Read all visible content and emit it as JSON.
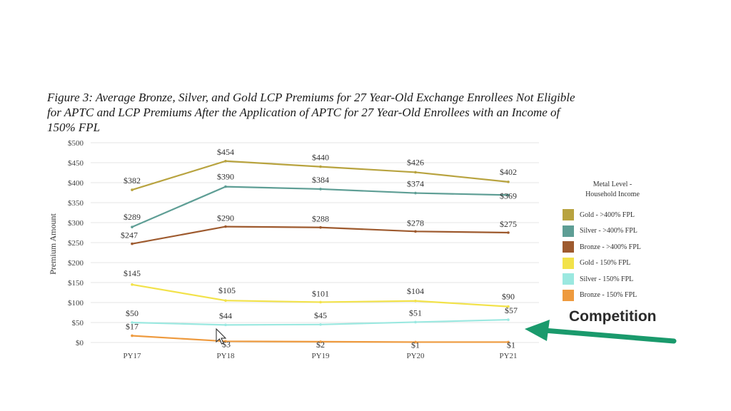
{
  "chart_data": {
    "type": "line",
    "title": "Figure 3: Average Bronze, Silver, and Gold LCP Premiums for 27 Year-Old Exchange Enrollees Not Eligible\nfor APTC and LCP Premiums After the Application of APTC for 27 Year-Old Enrollees with an Income of\n150% FPL",
    "xlabel": "",
    "ylabel": "Premium Amount",
    "categories": [
      "PY17",
      "PY18",
      "PY19",
      "PY20",
      "PY21"
    ],
    "ylim": [
      0,
      500
    ],
    "yticks": [
      "$0",
      "$50",
      "$100",
      "$150",
      "$200",
      "$250",
      "$300",
      "$350",
      "$400",
      "$450",
      "$500"
    ],
    "grid": true,
    "legend_title": "Metal Level -\nHousehold Income",
    "legend_position": "right",
    "series": [
      {
        "name": "Gold - >400% FPL",
        "color": "#b8a33f",
        "values": [
          382,
          454,
          440,
          426,
          402
        ],
        "labels": [
          "$382",
          "$454",
          "$440",
          "$426",
          "$402"
        ]
      },
      {
        "name": "Silver - >400% FPL",
        "color": "#5e9e95",
        "values": [
          289,
          390,
          384,
          374,
          369
        ],
        "labels": [
          "$289",
          "$390",
          "$384",
          "$374",
          "$369"
        ]
      },
      {
        "name": "Bronze - >400% FPL",
        "color": "#9e5a2e",
        "values": [
          247,
          290,
          288,
          278,
          275
        ],
        "labels": [
          "$247",
          "$290",
          "$288",
          "$278",
          "$275"
        ]
      },
      {
        "name": "Gold - 150% FPL",
        "color": "#f2e24a",
        "values": [
          145,
          105,
          101,
          104,
          90
        ],
        "labels": [
          "$145",
          "$105",
          "$101",
          "$104",
          "$90"
        ]
      },
      {
        "name": "Silver - 150% FPL",
        "color": "#9be8e0",
        "values": [
          50,
          44,
          45,
          51,
          57
        ],
        "labels": [
          "$50",
          "$44",
          "$45",
          "$51",
          "$57"
        ]
      },
      {
        "name": "Bronze - 150% FPL",
        "color": "#ee9a3e",
        "values": [
          17,
          3,
          2,
          1,
          1
        ],
        "labels": [
          "$17",
          "$3",
          "$2",
          "$1",
          "$1"
        ]
      }
    ]
  },
  "annotation": {
    "text": "Competition",
    "arrow_color": "#1a9a6c"
  }
}
